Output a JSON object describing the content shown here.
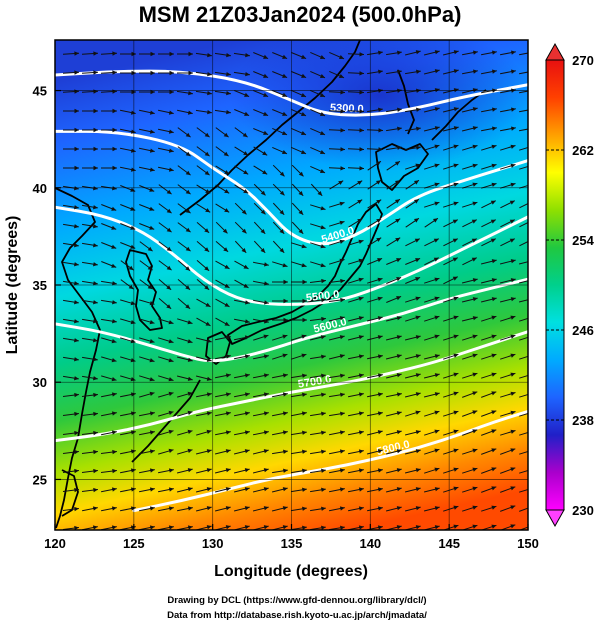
{
  "figure": {
    "title": "MSM 21Z03Jan2024 (500.0hPa)",
    "xlabel": "Longitude (degrees)",
    "ylabel": "Latitude  (degrees)",
    "credit_line1": "Drawing by DCL (https://www.gfd-dennou.org/library/dcl/)",
    "credit_line2": "Data from http://database.rish.kyoto-u.ac.jp/arch/jmadata/"
  },
  "chart_data": {
    "type": "heatmap",
    "title": "MSM 21Z03Jan2024 (500.0hPa)",
    "xlabel": "Longitude (degrees)",
    "ylabel": "Latitude  (degrees)",
    "xlim": [
      120,
      150
    ],
    "ylim": [
      22.4,
      47.6
    ],
    "xticks": [
      120,
      125,
      130,
      135,
      140,
      145,
      150
    ],
    "yticks": [
      25,
      30,
      35,
      40,
      45
    ],
    "grid": true,
    "colorbar": {
      "min": 230,
      "max": 270,
      "ticks": [
        230,
        238,
        246,
        254,
        262,
        270
      ],
      "colors": [
        "#ff00ff",
        "#aa00cc",
        "#2020c8",
        "#1e64ff",
        "#00aaff",
        "#00e0e0",
        "#00d08c",
        "#20c840",
        "#90e000",
        "#ffff00",
        "#ffa000",
        "#ff4000",
        "#e81010"
      ]
    },
    "contours": [
      {
        "label": "5300.0",
        "points": [
          [
            120,
            45.8
          ],
          [
            124,
            46.0
          ],
          [
            128,
            46.0
          ],
          [
            132,
            45.5
          ],
          [
            135,
            44.5
          ],
          [
            137,
            43.8
          ],
          [
            140,
            43.7
          ],
          [
            143,
            44.1
          ],
          [
            146,
            44.7
          ],
          [
            150,
            45.3
          ]
        ]
      },
      {
        "label": "5400.0",
        "points": [
          [
            120,
            42.9
          ],
          [
            124,
            42.9
          ],
          [
            128,
            42.2
          ],
          [
            130,
            41.0
          ],
          [
            132,
            40.0
          ],
          [
            133.5,
            38.8
          ],
          [
            135,
            37.5
          ],
          [
            137,
            37.0
          ],
          [
            139,
            37.5
          ],
          [
            141,
            38.5
          ],
          [
            143,
            39.6
          ],
          [
            146,
            40.4
          ],
          [
            150,
            41.4
          ]
        ]
      },
      {
        "label": "5500.0",
        "points": [
          [
            120,
            39.0
          ],
          [
            123,
            38.6
          ],
          [
            125.5,
            37.8
          ],
          [
            127.5,
            36.6
          ],
          [
            129.5,
            35.2
          ],
          [
            131.5,
            34.3
          ],
          [
            133.5,
            34.0
          ],
          [
            136,
            34.0
          ],
          [
            138,
            34.2
          ],
          [
            140,
            34.7
          ],
          [
            143,
            35.7
          ],
          [
            146,
            36.9
          ],
          [
            150,
            38.5
          ]
        ]
      },
      {
        "label": "5600.0",
        "points": [
          [
            120,
            33.0
          ],
          [
            123,
            32.6
          ],
          [
            126,
            31.9
          ],
          [
            128,
            31.4
          ],
          [
            130,
            31.0
          ],
          [
            133,
            31.5
          ],
          [
            136,
            32.3
          ],
          [
            139,
            32.9
          ],
          [
            142,
            33.5
          ],
          [
            145,
            34.3
          ],
          [
            148,
            34.9
          ],
          [
            150,
            35.3
          ]
        ]
      },
      {
        "label": "5700.0",
        "points": [
          [
            120,
            27.0
          ],
          [
            123,
            27.3
          ],
          [
            126,
            27.8
          ],
          [
            129,
            28.5
          ],
          [
            132,
            29.0
          ],
          [
            135,
            29.5
          ],
          [
            138,
            29.9
          ],
          [
            141,
            30.4
          ],
          [
            144,
            31.0
          ],
          [
            147,
            31.8
          ],
          [
            150,
            32.6
          ]
        ]
      },
      {
        "label": "5800.0",
        "points": [
          [
            125,
            23.4
          ],
          [
            128,
            23.9
          ],
          [
            131,
            24.5
          ],
          [
            134,
            25.1
          ],
          [
            137,
            25.5
          ],
          [
            140,
            26.0
          ],
          [
            143,
            26.6
          ],
          [
            146,
            27.4
          ],
          [
            148,
            28.0
          ],
          [
            150,
            28.5
          ]
        ]
      }
    ]
  }
}
